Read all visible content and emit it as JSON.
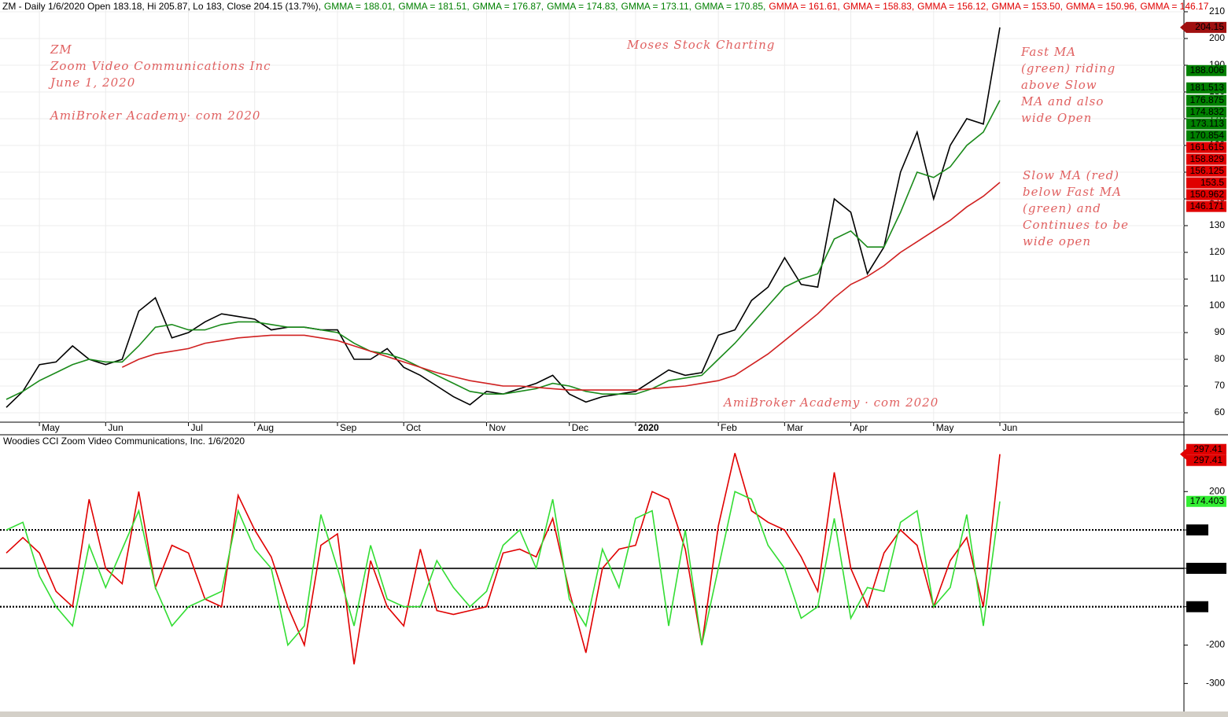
{
  "chart_data": [
    {
      "type": "line",
      "header": "ZM - Daily 1/6/2020 Open 183.18, Hi 205.87, Lo 183, Close 204.15 (13.7%),",
      "header_values": [
        {
          "text": "GMMA = 188.01,",
          "color": "#008000"
        },
        {
          "text": "GMMA = 181.51,",
          "color": "#008000"
        },
        {
          "text": "GMMA = 176.87,",
          "color": "#008000"
        },
        {
          "text": "GMMA = 174.83,",
          "color": "#008000"
        },
        {
          "text": "GMMA = 173.11,",
          "color": "#008000"
        },
        {
          "text": "GMMA = 170.85,",
          "color": "#008000"
        },
        {
          "text": "GMMA = 161.61,",
          "color": "#e00000"
        },
        {
          "text": "GMMA = 158.83,",
          "color": "#e00000"
        },
        {
          "text": "GMMA = 156.12,",
          "color": "#e00000"
        },
        {
          "text": "GMMA = 153.50,",
          "color": "#e00000"
        },
        {
          "text": "GMMA = 150.96,",
          "color": "#e00000"
        },
        {
          "text": "GMMA = 146.17",
          "color": "#e00000"
        }
      ],
      "notes_left": [
        "ZM",
        "Zoom Video Communications Inc",
        "June 1, 2020",
        "AmiBroker Academy· com 2020"
      ],
      "note_center": "Moses Stock Charting",
      "notes_right_1": [
        "Fast MA",
        "(green) riding",
        "above Slow",
        "MA and also",
        "wide Open"
      ],
      "notes_right_2": [
        "Slow MA (red)",
        "below Fast MA",
        "(green) and",
        "Continues to be",
        "wide open"
      ],
      "footer_note": "AmiBroker Academy · com  2020",
      "categories": [
        null,
        null,
        "May",
        null,
        null,
        null,
        "Jun",
        null,
        null,
        null,
        null,
        "Jul",
        null,
        null,
        null,
        "Aug",
        null,
        null,
        null,
        null,
        "Sep",
        null,
        null,
        null,
        "Oct",
        null,
        null,
        null,
        null,
        "Nov",
        null,
        null,
        null,
        null,
        "Dec",
        null,
        null,
        null,
        "2020",
        null,
        null,
        null,
        null,
        "Feb",
        null,
        null,
        null,
        "Mar",
        null,
        null,
        null,
        "Apr",
        null,
        null,
        null,
        null,
        "May",
        null,
        null,
        null,
        "Jun"
      ],
      "series": [
        {
          "color": "#000000",
          "values": [
            62,
            68,
            78,
            79,
            85,
            80,
            78,
            80,
            98,
            103,
            88,
            90,
            94,
            97,
            96,
            95,
            91,
            92,
            92,
            91,
            91,
            80,
            80,
            84,
            77,
            74,
            70,
            66,
            63,
            68,
            67,
            69,
            71,
            74,
            67,
            64,
            66,
            67,
            68,
            72,
            76,
            74,
            75,
            89,
            91,
            102,
            107,
            118,
            108,
            107,
            140,
            135,
            112,
            122,
            150,
            165,
            140,
            160,
            170,
            168,
            204.15
          ]
        },
        {
          "color": "#1a8a1a",
          "values": [
            65,
            68,
            72,
            75,
            78,
            80,
            79,
            79,
            85,
            92,
            93,
            91,
            91,
            93,
            94,
            94,
            93,
            92,
            92,
            91,
            90,
            86,
            83,
            82,
            80,
            77,
            74,
            71,
            68,
            67,
            67,
            68,
            69,
            71,
            70,
            68,
            67,
            67,
            67,
            69,
            72,
            73,
            74,
            80,
            86,
            93,
            100,
            107,
            110,
            112,
            125,
            128,
            122,
            122,
            135,
            150,
            148,
            152,
            160,
            165,
            176.875
          ]
        },
        {
          "color": "#d02020",
          "values": [
            null,
            null,
            null,
            null,
            null,
            null,
            null,
            77,
            80,
            82,
            83,
            84,
            86,
            87,
            88,
            88.5,
            89,
            89,
            89,
            88,
            87,
            85,
            83,
            81,
            79,
            77,
            75,
            73.5,
            72,
            71,
            70,
            70,
            69.5,
            69,
            68.5,
            68.5,
            68.5,
            68.5,
            68.5,
            69,
            69.5,
            70,
            71,
            72,
            74,
            78,
            82,
            87,
            92,
            97,
            103,
            108,
            111,
            115,
            120,
            124,
            128,
            132,
            137,
            141,
            146.171
          ]
        }
      ],
      "price_labels": [
        {
          "value": 188.006,
          "color": "#008000"
        },
        {
          "value": 181.513,
          "color": "#008000"
        },
        {
          "value": 174.832,
          "color": "#008000"
        },
        {
          "value": 173.113,
          "color": "#008000"
        },
        {
          "value": 170.854,
          "color": "#008000"
        },
        {
          "value": 161.615,
          "color": "#e00000"
        },
        {
          "value": 158.829,
          "color": "#e00000"
        },
        {
          "value": 156.125,
          "color": "#e00000"
        },
        {
          "value": 153.5,
          "color": "#e00000"
        },
        {
          "value": 150.962,
          "color": "#e00000"
        }
      ],
      "ylim": [
        55.6,
        214.4
      ],
      "yticks": [
        60,
        70,
        80,
        90,
        100,
        110,
        120,
        130,
        140,
        150,
        160,
        170,
        180,
        190,
        200,
        210
      ],
      "grid": true
    },
    {
      "type": "line",
      "title": "Woodies CCI  Zoom Video Communications, Inc. 1/6/2020",
      "series": [
        {
          "color": "#e00000",
          "values": [
            40,
            80,
            40,
            -60,
            -100,
            180,
            0,
            -40,
            200,
            -50,
            60,
            40,
            -80,
            -100,
            190,
            100,
            30,
            -100,
            -200,
            60,
            90,
            -250,
            20,
            -100,
            -150,
            50,
            -110,
            -120,
            -110,
            -100,
            40,
            50,
            30,
            130,
            -60,
            -220,
            0,
            50,
            60,
            200,
            180,
            50,
            -200,
            110,
            300,
            150,
            120,
            100,
            30,
            -60,
            250,
            0,
            -100,
            40,
            100,
            60,
            -100,
            20,
            80,
            -100,
            297.41
          ]
        },
        {
          "color": "#33dd33",
          "values": [
            100,
            120,
            -20,
            -100,
            -150,
            60,
            -50,
            50,
            150,
            -50,
            -150,
            -100,
            -80,
            -60,
            150,
            50,
            0,
            -200,
            -150,
            140,
            0,
            -150,
            60,
            -80,
            -100,
            -100,
            20,
            -50,
            -100,
            -60,
            60,
            100,
            0,
            180,
            -80,
            -150,
            50,
            -50,
            130,
            150,
            -150,
            100,
            -200,
            0,
            200,
            180,
            60,
            0,
            -130,
            -100,
            130,
            -130,
            -50,
            -60,
            120,
            150,
            -100,
            -50,
            140,
            -150,
            174.403
          ]
        }
      ],
      "ylim": [
        -373,
        348
      ],
      "yticks": [
        -300,
        -200,
        -100,
        {
          "value": 0,
          "label": "0.00000"
        },
        100,
        200
      ],
      "levels": [
        -100,
        0,
        100
      ]
    }
  ]
}
